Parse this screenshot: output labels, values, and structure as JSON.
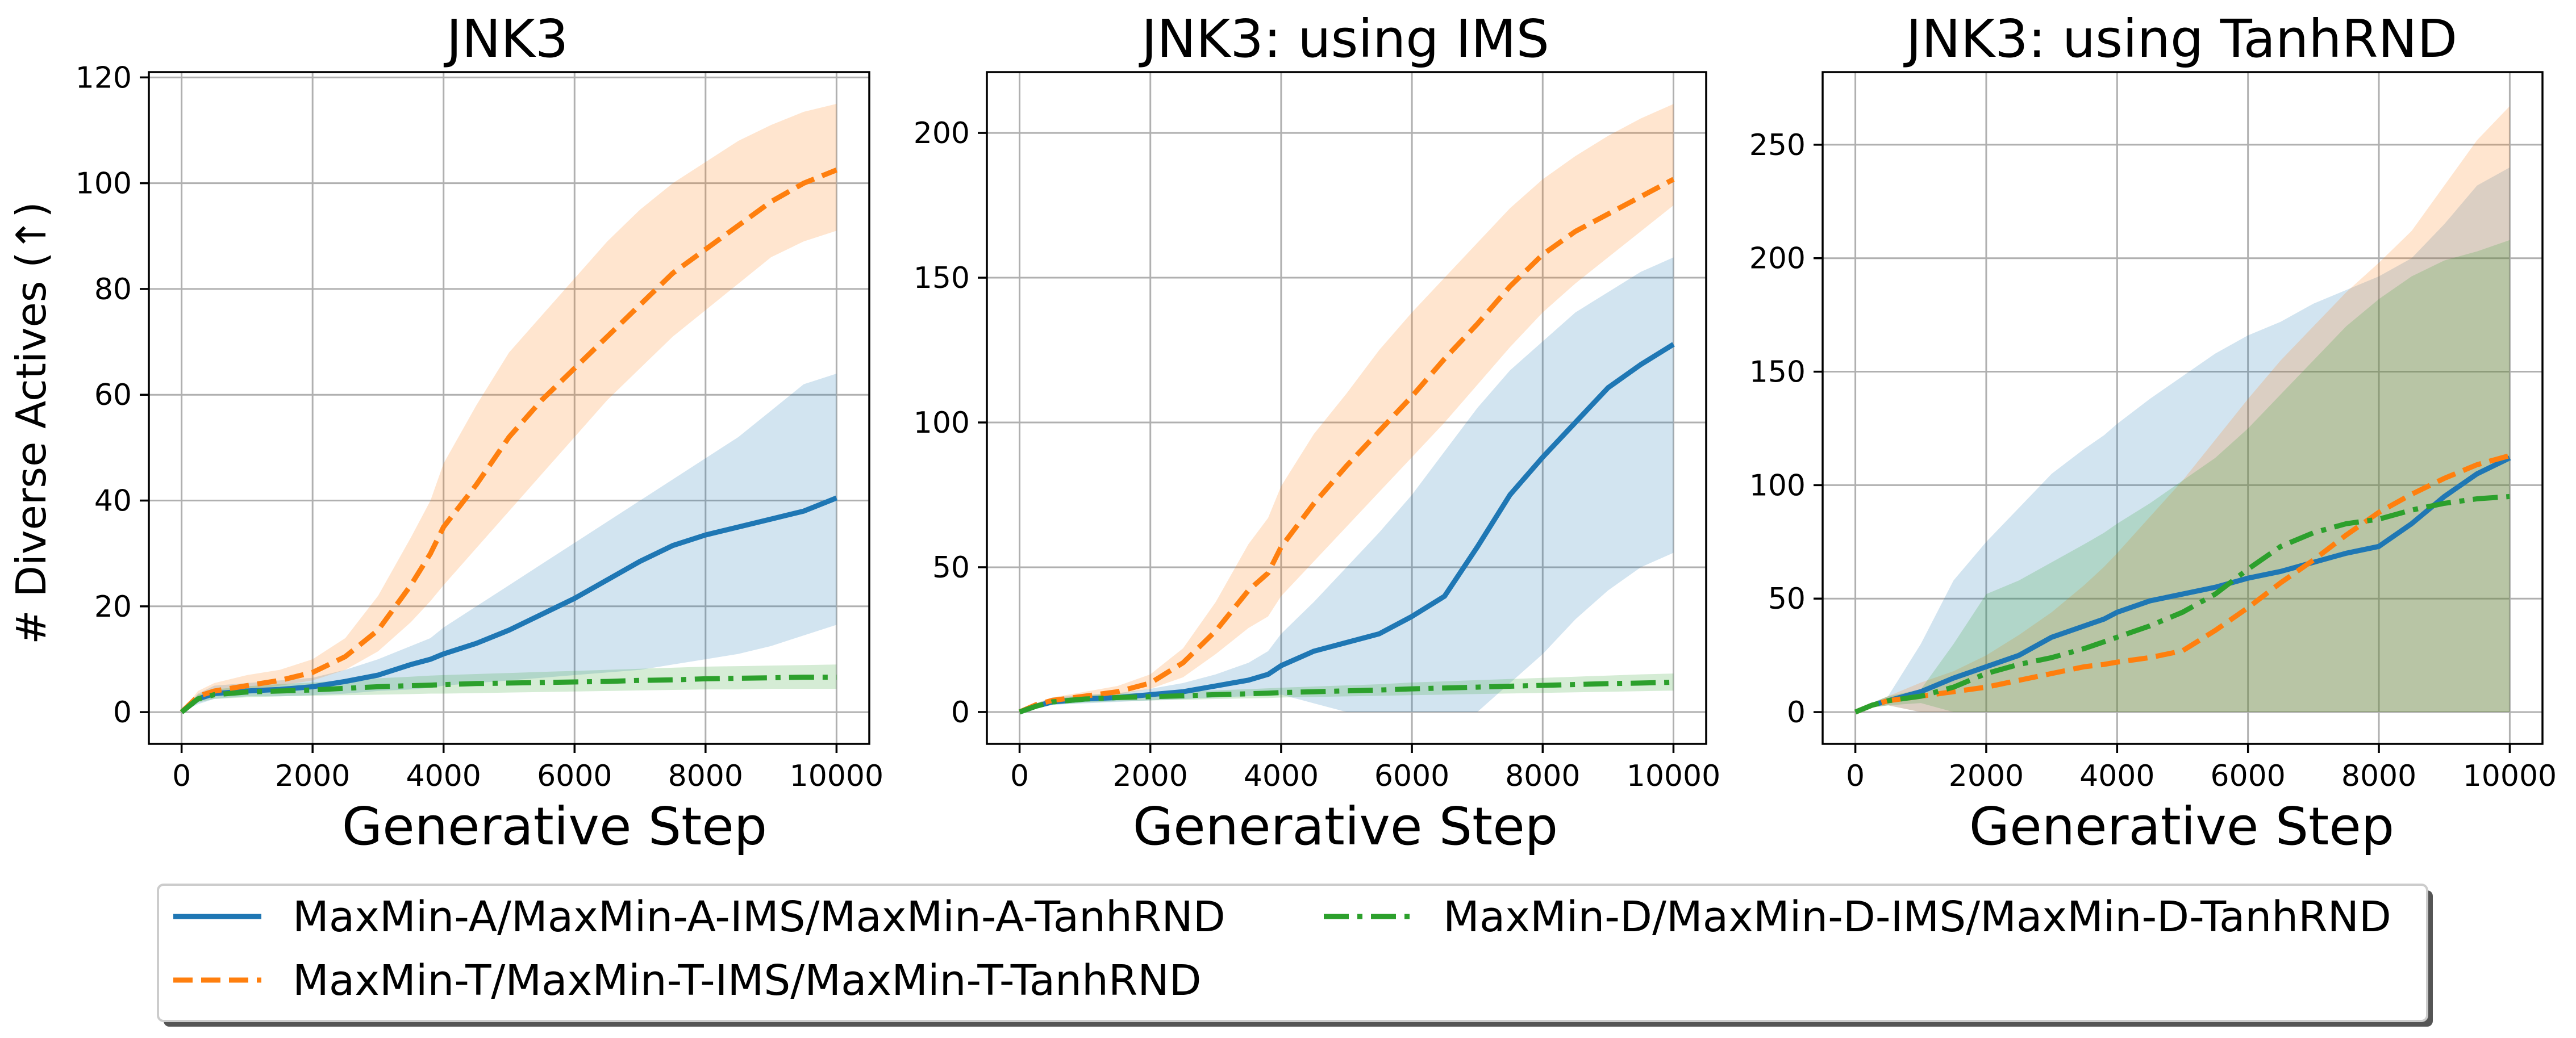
{
  "chart_data": [
    {
      "type": "line",
      "title": "JNK3",
      "xlabel": "Generative Step",
      "ylabel": "# Diverse Actives (↑)",
      "xlim": [
        -500,
        10500
      ],
      "ylim": [
        -6,
        121
      ],
      "xticks": [
        0,
        2000,
        4000,
        6000,
        8000,
        10000
      ],
      "xtick_labels": [
        "0",
        "2000",
        "4000",
        "6000",
        "8000",
        "10000"
      ],
      "yticks": [
        0,
        20,
        40,
        60,
        80,
        100,
        120
      ],
      "ytick_labels": [
        "0",
        "20",
        "40",
        "60",
        "80",
        "100",
        "120"
      ],
      "x": [
        0,
        250,
        500,
        1000,
        1500,
        2000,
        2500,
        3000,
        3500,
        3800,
        4000,
        4500,
        5000,
        5500,
        6000,
        6500,
        7000,
        7500,
        8000,
        8500,
        9000,
        9500,
        10000
      ],
      "series": [
        {
          "name": "MaxMin-A",
          "style": "solid",
          "color": "#1f77b4",
          "values": [
            0,
            2.5,
            3.5,
            4,
            4.3,
            4.8,
            5.8,
            7,
            9,
            10,
            11,
            13,
            15.5,
            18.5,
            21.5,
            25,
            28.5,
            31.5,
            33.5,
            35,
            36.5,
            38,
            40.5
          ],
          "lower": [
            0,
            1.5,
            2.5,
            3,
            3,
            3.2,
            3.5,
            4,
            4.3,
            4.6,
            5,
            5.5,
            6,
            6.5,
            7,
            7.5,
            8,
            9,
            10,
            11,
            12.5,
            14.5,
            16.5
          ],
          "upper": [
            0,
            3.5,
            5,
            5.5,
            6,
            6.5,
            8,
            10,
            12.5,
            14,
            16,
            20,
            24,
            28,
            32,
            36,
            40,
            44,
            48,
            52,
            57,
            62,
            64
          ]
        },
        {
          "name": "MaxMin-T",
          "style": "dashed",
          "color": "#ff7f0e",
          "values": [
            0,
            3,
            4,
            5,
            6,
            7.5,
            10.5,
            15.5,
            24,
            30,
            35,
            43,
            52,
            59,
            65,
            71,
            77,
            83,
            87.5,
            92,
            96.5,
            100,
            102.5
          ],
          "lower": [
            0,
            2,
            3,
            4,
            5,
            6,
            8,
            11.5,
            17,
            21,
            24,
            31,
            38,
            45,
            52,
            59,
            65,
            71,
            76,
            81,
            86,
            89,
            91
          ],
          "upper": [
            0,
            4,
            5.5,
            7,
            8,
            10,
            14,
            22,
            33,
            40,
            47,
            58,
            68,
            75,
            82,
            89,
            95,
            100,
            104,
            108,
            111,
            113.5,
            115
          ]
        },
        {
          "name": "MaxMin-D",
          "style": "dashdot",
          "color": "#2ca02c",
          "values": [
            0,
            2.5,
            3.3,
            3.8,
            4,
            4.2,
            4.5,
            4.8,
            5,
            5.1,
            5.2,
            5.4,
            5.5,
            5.6,
            5.7,
            5.8,
            6,
            6.1,
            6.3,
            6.4,
            6.5,
            6.6,
            6.6
          ],
          "lower": [
            0,
            1.8,
            2.5,
            2.8,
            3,
            3.1,
            3.2,
            3.3,
            3.4,
            3.5,
            3.5,
            3.6,
            3.7,
            3.8,
            3.9,
            4,
            4.1,
            4.2,
            4.3,
            4.3,
            4.4,
            4.4,
            4.4
          ],
          "upper": [
            0,
            3.3,
            4.3,
            4.9,
            5.3,
            5.6,
            6,
            6.4,
            6.7,
            6.9,
            7,
            7.2,
            7.4,
            7.6,
            7.8,
            8,
            8.2,
            8.4,
            8.6,
            8.7,
            8.8,
            8.9,
            9
          ]
        }
      ]
    },
    {
      "type": "line",
      "title": "JNK3: using IMS",
      "xlabel": "Generative Step",
      "ylabel": "",
      "xlim": [
        -500,
        10500
      ],
      "ylim": [
        -11,
        221
      ],
      "xticks": [
        0,
        2000,
        4000,
        6000,
        8000,
        10000
      ],
      "xtick_labels": [
        "0",
        "2000",
        "4000",
        "6000",
        "8000",
        "10000"
      ],
      "yticks": [
        0,
        50,
        100,
        150,
        200
      ],
      "ytick_labels": [
        "0",
        "50",
        "100",
        "150",
        "200"
      ],
      "x": [
        0,
        250,
        500,
        1000,
        1500,
        2000,
        2500,
        3000,
        3500,
        3800,
        4000,
        4500,
        5000,
        5500,
        6000,
        6500,
        7000,
        7500,
        8000,
        8500,
        9000,
        9500,
        10000
      ],
      "series": [
        {
          "name": "MaxMin-A-IMS",
          "style": "solid",
          "color": "#1f77b4",
          "values": [
            0,
            2,
            3.5,
            4.5,
            5,
            6,
            7,
            9,
            11,
            13,
            16,
            21,
            24,
            27,
            33,
            40,
            57,
            75,
            88,
            100,
            112,
            120,
            127
          ],
          "lower": [
            0,
            1,
            2.5,
            3,
            3.5,
            4,
            4.5,
            5,
            5.5,
            5.8,
            6,
            3,
            0,
            0,
            0,
            0,
            0,
            10,
            20,
            32,
            42,
            50,
            55
          ],
          "upper": [
            0,
            3,
            5,
            6,
            6.5,
            8,
            10,
            13,
            17,
            21,
            27,
            38,
            50,
            62,
            75,
            90,
            105,
            118,
            128,
            138,
            145,
            152,
            157
          ]
        },
        {
          "name": "MaxMin-T-IMS",
          "style": "dashed",
          "color": "#ff7f0e",
          "values": [
            0,
            2.5,
            4,
            5.5,
            7,
            10,
            17,
            28,
            42,
            48,
            57,
            72,
            85,
            97,
            109,
            122,
            134,
            147,
            158,
            166,
            172,
            178,
            184
          ],
          "lower": [
            0,
            2,
            3,
            4.5,
            6,
            8,
            12,
            20,
            29,
            33,
            40,
            52,
            64,
            76,
            88,
            100,
            113,
            126,
            138,
            148,
            157,
            166,
            175
          ],
          "upper": [
            0,
            3,
            5,
            7,
            9,
            13,
            22,
            38,
            58,
            67,
            78,
            96,
            110,
            125,
            138,
            150,
            162,
            174,
            184,
            192,
            199,
            205,
            210
          ]
        },
        {
          "name": "MaxMin-D-IMS",
          "style": "dashdot",
          "color": "#2ca02c",
          "values": [
            0,
            2,
            3.5,
            4.5,
            5,
            5.3,
            5.6,
            6,
            6.3,
            6.5,
            6.7,
            7,
            7.3,
            7.6,
            8,
            8.3,
            8.6,
            8.9,
            9.2,
            9.5,
            9.8,
            10,
            10.3
          ],
          "lower": [
            0,
            1.3,
            2.5,
            3.3,
            3.7,
            4,
            4.2,
            4.5,
            4.7,
            4.8,
            5,
            5.2,
            5.4,
            5.6,
            5.8,
            6,
            6.2,
            6.4,
            6.6,
            6.8,
            7,
            7.2,
            7.4
          ],
          "upper": [
            0,
            2.7,
            4.5,
            5.7,
            6.3,
            6.7,
            7,
            7.5,
            7.9,
            8.2,
            8.4,
            8.8,
            9.2,
            9.6,
            10.2,
            10.6,
            11,
            11.4,
            11.8,
            12.2,
            12.6,
            13,
            13.3
          ]
        }
      ]
    },
    {
      "type": "line",
      "title": "JNK3: using TanhRND",
      "xlabel": "Generative Step",
      "ylabel": "",
      "xlim": [
        -500,
        10500
      ],
      "ylim": [
        -14,
        282
      ],
      "xticks": [
        0,
        2000,
        4000,
        6000,
        8000,
        10000
      ],
      "xtick_labels": [
        "0",
        "2000",
        "4000",
        "6000",
        "8000",
        "10000"
      ],
      "yticks": [
        0,
        50,
        100,
        150,
        200,
        250
      ],
      "ytick_labels": [
        "0",
        "50",
        "100",
        "150",
        "200",
        "250"
      ],
      "x": [
        0,
        250,
        500,
        1000,
        1500,
        2000,
        2500,
        3000,
        3500,
        3800,
        4000,
        4500,
        5000,
        5500,
        6000,
        6500,
        7000,
        7500,
        8000,
        8500,
        9000,
        9500,
        10000
      ],
      "series": [
        {
          "name": "MaxMin-A-TanhRND",
          "style": "solid",
          "color": "#1f77b4",
          "values": [
            0,
            3,
            5,
            9,
            15,
            20,
            25,
            33,
            38,
            41,
            44,
            49,
            52,
            55,
            59,
            62,
            66,
            70,
            73,
            83,
            95,
            105,
            112
          ],
          "lower": [
            0,
            2,
            3,
            0,
            0,
            0,
            0,
            0,
            0,
            0,
            0,
            0,
            0,
            0,
            0,
            0,
            0,
            0,
            0,
            0,
            0,
            0,
            0
          ],
          "upper": [
            0,
            4,
            7,
            30,
            58,
            75,
            90,
            105,
            116,
            122,
            127,
            138,
            148,
            158,
            166,
            172,
            180,
            186,
            192,
            200,
            215,
            232,
            240
          ]
        },
        {
          "name": "MaxMin-T-TanhRND",
          "style": "dashed",
          "color": "#ff7f0e",
          "values": [
            0,
            3,
            5,
            7,
            9,
            11,
            14,
            17,
            20,
            21,
            22,
            24,
            27,
            36,
            46,
            57,
            67,
            78,
            88,
            96,
            103,
            109,
            113
          ],
          "lower": [
            0,
            2,
            3,
            0,
            0,
            0,
            0,
            0,
            0,
            0,
            0,
            0,
            0,
            0,
            0,
            0,
            0,
            0,
            0,
            0,
            0,
            0,
            0
          ],
          "upper": [
            0,
            4,
            7,
            13,
            18,
            25,
            34,
            44,
            56,
            64,
            70,
            86,
            102,
            120,
            138,
            155,
            170,
            185,
            198,
            212,
            232,
            252,
            267
          ]
        },
        {
          "name": "MaxMin-D-TanhRND",
          "style": "dashdot",
          "color": "#2ca02c",
          "values": [
            0,
            3,
            5,
            7,
            11,
            17,
            21,
            24,
            28,
            31,
            33,
            38,
            44,
            52,
            63,
            73,
            79,
            83,
            85,
            89,
            92,
            94,
            95
          ],
          "lower": [
            0,
            2,
            3,
            4,
            0,
            0,
            0,
            0,
            0,
            0,
            0,
            0,
            0,
            0,
            0,
            0,
            0,
            0,
            0,
            0,
            0,
            0,
            0
          ],
          "upper": [
            0,
            4,
            7,
            10,
            30,
            52,
            58,
            66,
            74,
            79,
            83,
            92,
            102,
            112,
            125,
            140,
            155,
            170,
            182,
            192,
            199,
            203,
            208
          ]
        }
      ]
    }
  ],
  "legend": {
    "entries": [
      {
        "label": "MaxMin-A/MaxMin-A-IMS/MaxMin-A-TanhRND",
        "style": "solid",
        "color": "#1f77b4"
      },
      {
        "label": "MaxMin-T/MaxMin-T-IMS/MaxMin-T-TanhRND",
        "style": "dashed",
        "color": "#ff7f0e"
      },
      {
        "label": "MaxMin-D/MaxMin-D-IMS/MaxMin-D-TanhRND",
        "style": "dashdot",
        "color": "#2ca02c"
      }
    ],
    "placement": "bottom-center"
  }
}
